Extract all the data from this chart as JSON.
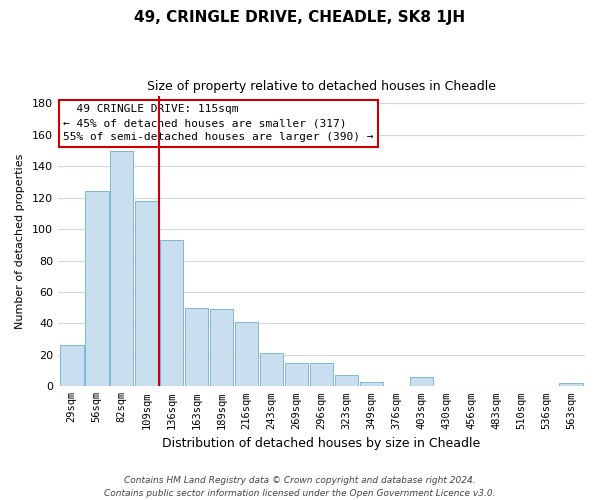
{
  "title": "49, CRINGLE DRIVE, CHEADLE, SK8 1JH",
  "subtitle": "Size of property relative to detached houses in Cheadle",
  "xlabel": "Distribution of detached houses by size in Cheadle",
  "ylabel": "Number of detached properties",
  "bar_labels": [
    "29sqm",
    "56sqm",
    "82sqm",
    "109sqm",
    "136sqm",
    "163sqm",
    "189sqm",
    "216sqm",
    "243sqm",
    "269sqm",
    "296sqm",
    "323sqm",
    "349sqm",
    "376sqm",
    "403sqm",
    "430sqm",
    "456sqm",
    "483sqm",
    "510sqm",
    "536sqm",
    "563sqm"
  ],
  "bar_values": [
    26,
    124,
    150,
    118,
    93,
    50,
    49,
    41,
    21,
    15,
    15,
    7,
    3,
    0,
    6,
    0,
    0,
    0,
    0,
    0,
    2
  ],
  "bar_color": "#c9dff0",
  "bar_edge_color": "#7eb8d4",
  "vline_x": 3.5,
  "vline_color": "#cc0000",
  "annotation_text": "  49 CRINGLE DRIVE: 115sqm\n← 45% of detached houses are smaller (317)\n55% of semi-detached houses are larger (390) →",
  "annotation_box_color": "#ffffff",
  "annotation_box_edge": "#cc0000",
  "ylim": [
    0,
    185
  ],
  "yticks": [
    0,
    20,
    40,
    60,
    80,
    100,
    120,
    140,
    160,
    180
  ],
  "footnote": "Contains HM Land Registry data © Crown copyright and database right 2024.\nContains public sector information licensed under the Open Government Licence v3.0.",
  "bg_color": "#ffffff",
  "grid_color": "#cdd9e5",
  "title_fontsize": 11,
  "subtitle_fontsize": 9,
  "ylabel_fontsize": 8,
  "xlabel_fontsize": 9,
  "tick_fontsize": 8,
  "xtick_fontsize": 7.5,
  "footnote_fontsize": 6.5
}
